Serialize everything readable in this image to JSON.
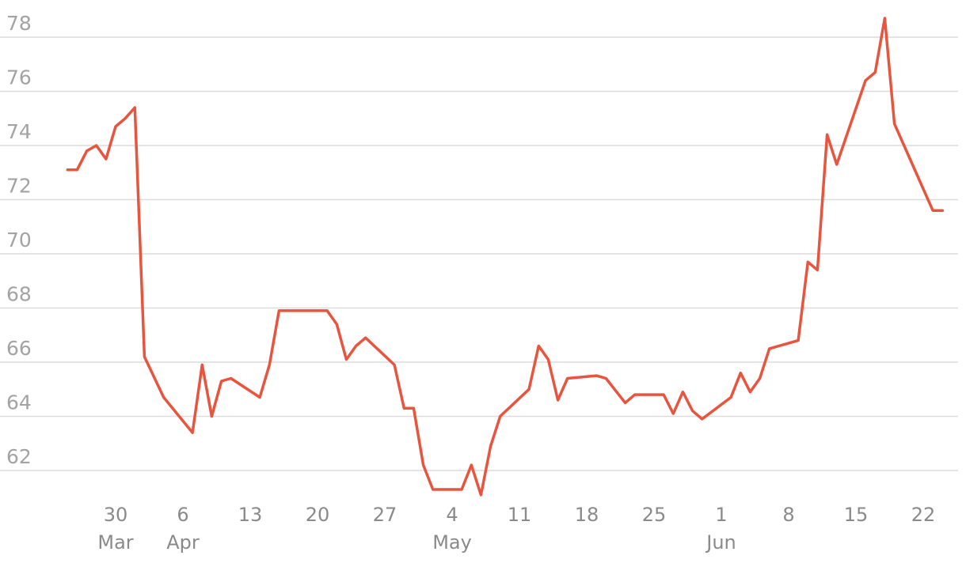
{
  "chart_data": {
    "type": "line",
    "title": "",
    "xlabel": "",
    "ylabel": "",
    "ylim": [
      60.6,
      79.2
    ],
    "yticks": [
      62,
      64,
      66,
      68,
      70,
      72,
      74,
      76,
      78
    ],
    "ytick_labels": [
      "62",
      "64",
      "66",
      "68",
      "70",
      "72",
      "74",
      "76",
      "78"
    ],
    "grid": true,
    "legend": "none",
    "colors": {
      "line": "#e8553e",
      "grid": "#dcdcdc",
      "tick_text": "#a3a3a3"
    },
    "x_ticks": [
      {
        "date": "2020-03-30",
        "day": "30",
        "month": "Mar"
      },
      {
        "date": "2020-04-06",
        "day": "6",
        "month": "Apr"
      },
      {
        "date": "2020-04-13",
        "day": "13",
        "month": ""
      },
      {
        "date": "2020-04-20",
        "day": "20",
        "month": ""
      },
      {
        "date": "2020-04-27",
        "day": "27",
        "month": ""
      },
      {
        "date": "2020-05-04",
        "day": "4",
        "month": "May"
      },
      {
        "date": "2020-05-11",
        "day": "11",
        "month": ""
      },
      {
        "date": "2020-05-18",
        "day": "18",
        "month": ""
      },
      {
        "date": "2020-05-25",
        "day": "25",
        "month": ""
      },
      {
        "date": "2020-06-01",
        "day": "1",
        "month": "Jun"
      },
      {
        "date": "2020-06-08",
        "day": "8",
        "month": ""
      },
      {
        "date": "2020-06-15",
        "day": "15",
        "month": ""
      },
      {
        "date": "2020-06-22",
        "day": "22",
        "month": ""
      }
    ],
    "series": [
      {
        "x": [
          "2020-03-25",
          "2020-03-26",
          "2020-03-27",
          "2020-03-28",
          "2020-03-29",
          "2020-03-30",
          "2020-03-31",
          "2020-04-01",
          "2020-04-02",
          "2020-04-04",
          "2020-04-07",
          "2020-04-08",
          "2020-04-09",
          "2020-04-10",
          "2020-04-11",
          "2020-04-14",
          "2020-04-15",
          "2020-04-16",
          "2020-04-17",
          "2020-04-21",
          "2020-04-22",
          "2020-04-23",
          "2020-04-24",
          "2020-04-25",
          "2020-04-28",
          "2020-04-29",
          "2020-04-30",
          "2020-05-01",
          "2020-05-02",
          "2020-05-03",
          "2020-05-05",
          "2020-05-06",
          "2020-05-07",
          "2020-05-08",
          "2020-05-09",
          "2020-05-12",
          "2020-05-13",
          "2020-05-14",
          "2020-05-15",
          "2020-05-16",
          "2020-05-19",
          "2020-05-20",
          "2020-05-22",
          "2020-05-23",
          "2020-05-26",
          "2020-05-27",
          "2020-05-28",
          "2020-05-29",
          "2020-05-30",
          "2020-06-02",
          "2020-06-03",
          "2020-06-04",
          "2020-06-05",
          "2020-06-06",
          "2020-06-09",
          "2020-06-10",
          "2020-06-11",
          "2020-06-12",
          "2020-06-13",
          "2020-06-16",
          "2020-06-17",
          "2020-06-18",
          "2020-06-19",
          "2020-06-23",
          "2020-06-24"
        ],
        "y": [
          73.1,
          73.1,
          73.8,
          74.0,
          73.5,
          74.7,
          75.0,
          75.4,
          66.2,
          64.7,
          63.4,
          65.9,
          64.0,
          65.3,
          65.4,
          64.7,
          65.9,
          67.9,
          67.9,
          67.9,
          67.4,
          66.1,
          66.6,
          66.9,
          65.9,
          64.3,
          64.3,
          62.2,
          61.3,
          61.3,
          61.3,
          62.2,
          61.1,
          62.9,
          64.0,
          65.0,
          66.6,
          66.1,
          64.6,
          65.4,
          65.5,
          65.4,
          64.5,
          64.8,
          64.8,
          64.1,
          64.9,
          64.2,
          63.9,
          64.7,
          65.6,
          64.9,
          65.4,
          66.5,
          66.8,
          69.7,
          69.4,
          74.4,
          73.3,
          76.4,
          76.7,
          78.7,
          74.8,
          71.6,
          71.6
        ]
      }
    ]
  }
}
